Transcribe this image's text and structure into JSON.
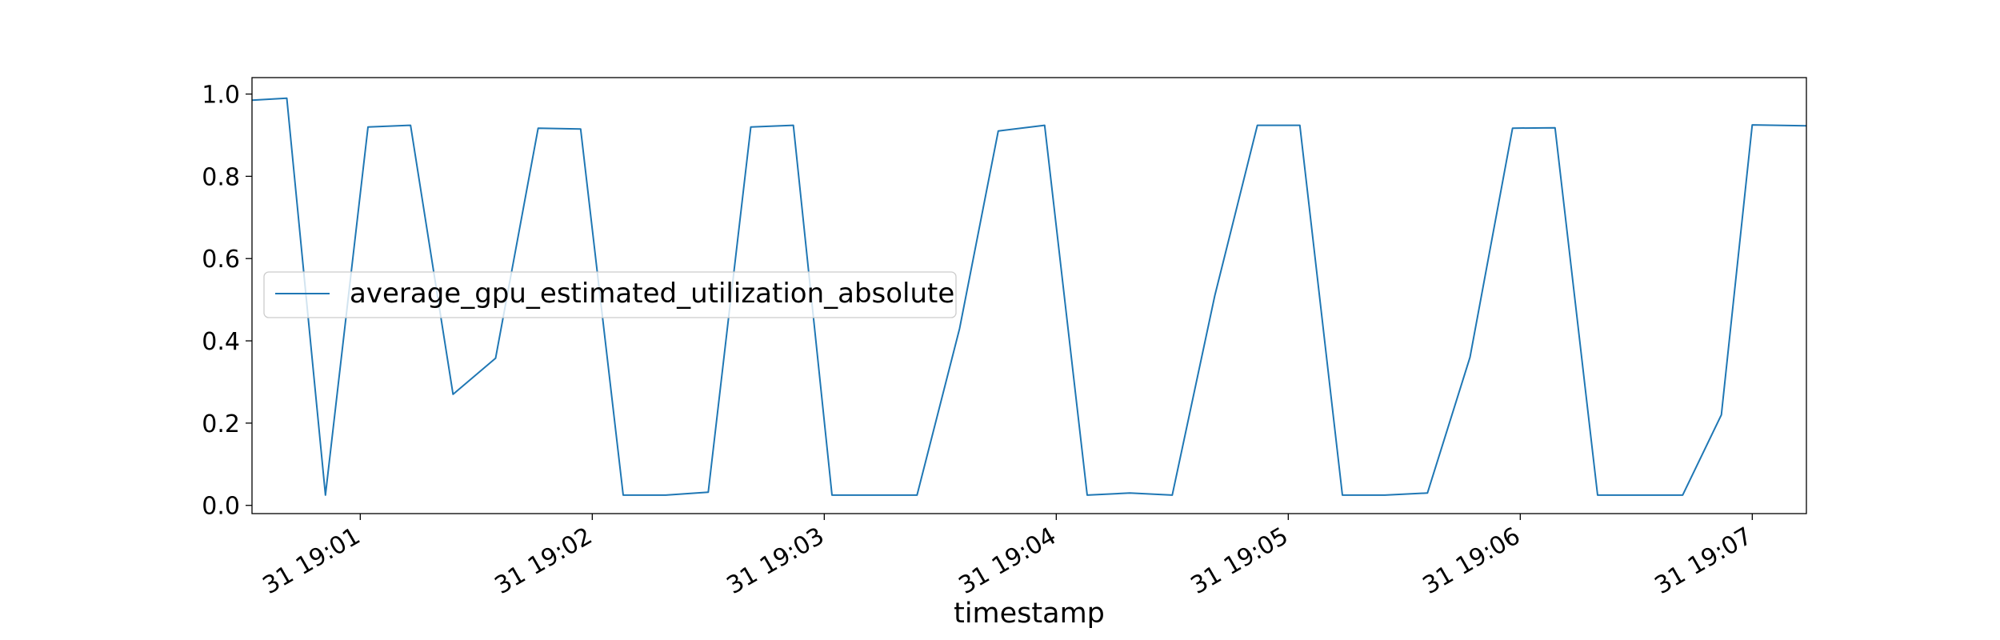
{
  "chart_data": {
    "type": "line",
    "xlabel": "timestamp",
    "ylabel": "",
    "xlim": [
      "19:00:32",
      "19:07:14"
    ],
    "ylim": [
      -0.02,
      1.04
    ],
    "grid": false,
    "legend_position": "center-left",
    "x_ticks": [
      {
        "value": "19:01:00",
        "label": "31 19:01"
      },
      {
        "value": "19:02:00",
        "label": "31 19:02"
      },
      {
        "value": "19:03:00",
        "label": "31 19:03"
      },
      {
        "value": "19:04:00",
        "label": "31 19:04"
      },
      {
        "value": "19:05:00",
        "label": "31 19:05"
      },
      {
        "value": "19:06:00",
        "label": "31 19:06"
      },
      {
        "value": "19:07:00",
        "label": "31 19:07"
      }
    ],
    "y_ticks": [
      {
        "value": 0.0,
        "label": "0.0"
      },
      {
        "value": 0.2,
        "label": "0.2"
      },
      {
        "value": 0.4,
        "label": "0.4"
      },
      {
        "value": 0.6,
        "label": "0.6"
      },
      {
        "value": 0.8,
        "label": "0.8"
      },
      {
        "value": 1.0,
        "label": "1.0"
      }
    ],
    "series": [
      {
        "name": "average_gpu_estimated_utilization_absolute",
        "color": "#1f77b4",
        "points": [
          {
            "x": "19:00:32",
            "y": 0.985
          },
          {
            "x": "19:00:41",
            "y": 0.99
          },
          {
            "x": "19:00:51",
            "y": 0.025
          },
          {
            "x": "19:01:02",
            "y": 0.92
          },
          {
            "x": "19:01:13",
            "y": 0.924
          },
          {
            "x": "19:01:24",
            "y": 0.27
          },
          {
            "x": "19:01:35",
            "y": 0.358
          },
          {
            "x": "19:01:46",
            "y": 0.917
          },
          {
            "x": "19:01:57",
            "y": 0.915
          },
          {
            "x": "19:02:08",
            "y": 0.025
          },
          {
            "x": "19:02:19",
            "y": 0.025
          },
          {
            "x": "19:02:30",
            "y": 0.032
          },
          {
            "x": "19:02:41",
            "y": 0.92
          },
          {
            "x": "19:02:52",
            "y": 0.924
          },
          {
            "x": "19:03:02",
            "y": 0.025
          },
          {
            "x": "19:03:13",
            "y": 0.025
          },
          {
            "x": "19:03:24",
            "y": 0.025
          },
          {
            "x": "19:03:35",
            "y": 0.43
          },
          {
            "x": "19:03:45",
            "y": 0.91
          },
          {
            "x": "19:03:57",
            "y": 0.924
          },
          {
            "x": "19:04:08",
            "y": 0.025
          },
          {
            "x": "19:04:19",
            "y": 0.03
          },
          {
            "x": "19:04:30",
            "y": 0.025
          },
          {
            "x": "19:04:41",
            "y": 0.51
          },
          {
            "x": "19:04:52",
            "y": 0.924
          },
          {
            "x": "19:05:03",
            "y": 0.924
          },
          {
            "x": "19:05:14",
            "y": 0.025
          },
          {
            "x": "19:05:25",
            "y": 0.025
          },
          {
            "x": "19:05:36",
            "y": 0.03
          },
          {
            "x": "19:05:47",
            "y": 0.36
          },
          {
            "x": "19:05:58",
            "y": 0.917
          },
          {
            "x": "19:06:09",
            "y": 0.918
          },
          {
            "x": "19:06:20",
            "y": 0.025
          },
          {
            "x": "19:06:31",
            "y": 0.025
          },
          {
            "x": "19:06:42",
            "y": 0.025
          },
          {
            "x": "19:06:52",
            "y": 0.22
          },
          {
            "x": "19:07:00",
            "y": 0.925
          },
          {
            "x": "19:07:14",
            "y": 0.923
          }
        ]
      }
    ]
  }
}
